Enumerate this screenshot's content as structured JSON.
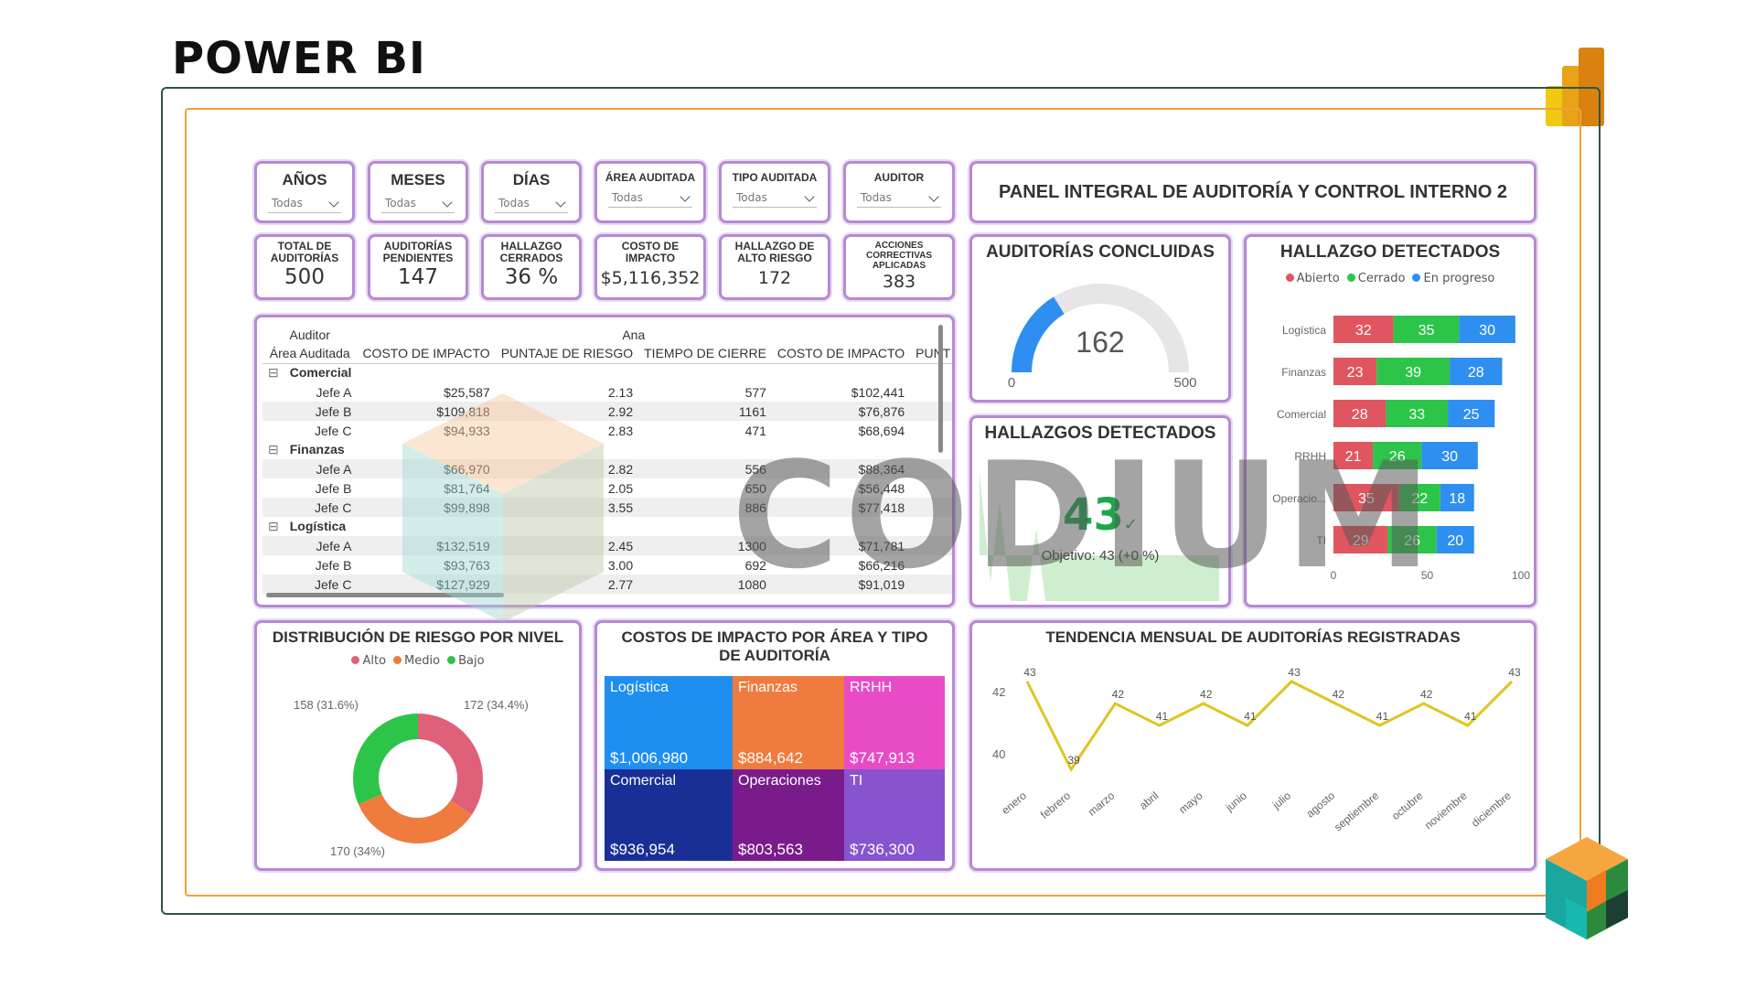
{
  "page": {
    "title": "POWER BI"
  },
  "slicers": [
    {
      "title": "AÑOS",
      "value": "Todas"
    },
    {
      "title": "MESES",
      "value": "Todas"
    },
    {
      "title": "DÍAS",
      "value": "Todas"
    },
    {
      "title": "ÁREA AUDITADA",
      "value": "Todas"
    },
    {
      "title": "TIPO AUDITADA",
      "value": "Todas"
    },
    {
      "title": "AUDITOR",
      "value": "Todas"
    }
  ],
  "dashboard_title": "PANEL INTEGRAL DE AUDITORÍA Y CONTROL INTERNO 2",
  "kpis": [
    {
      "label": "TOTAL DE AUDITORÍAS",
      "value": "500"
    },
    {
      "label": "AUDITORÍAS PENDIENTES",
      "value": "147"
    },
    {
      "label": "HALLAZGO CERRADOS",
      "value": "36 %"
    },
    {
      "label": "COSTO DE IMPACTO",
      "value": "$5,116,352"
    },
    {
      "label": "HALLAZGO DE ALTO RIESGO",
      "value": "172"
    },
    {
      "label": "ACCIONES CORRECTIVAS APLICADAS",
      "value": "383"
    }
  ],
  "matrix": {
    "row_header_1": "Auditor",
    "row_header_2": "Área Auditada",
    "col_group": "Ana",
    "columns": [
      "COSTO DE IMPACTO",
      "PUNTAJE DE RIESGO",
      "TIEMPO DE CIERRE",
      "COSTO DE IMPACTO",
      "PUNT"
    ],
    "groups": [
      {
        "name": "Comercial",
        "rows": [
          {
            "name": "Jefe A",
            "c1": "$25,587",
            "c2": "2.13",
            "c3": "577",
            "c4": "$102,441"
          },
          {
            "name": "Jefe B",
            "c1": "$109,818",
            "c2": "2.92",
            "c3": "1161",
            "c4": "$76,876"
          },
          {
            "name": "Jefe C",
            "c1": "$94,933",
            "c2": "2.83",
            "c3": "471",
            "c4": "$68,694"
          }
        ]
      },
      {
        "name": "Finanzas",
        "rows": [
          {
            "name": "Jefe A",
            "c1": "$66,970",
            "c2": "2.82",
            "c3": "556",
            "c4": "$88,364"
          },
          {
            "name": "Jefe B",
            "c1": "$81,764",
            "c2": "2.05",
            "c3": "650",
            "c4": "$56,448"
          },
          {
            "name": "Jefe C",
            "c1": "$99,898",
            "c2": "3.55",
            "c3": "886",
            "c4": "$77,418"
          }
        ]
      },
      {
        "name": "Logística",
        "rows": [
          {
            "name": "Jefe A",
            "c1": "$132,519",
            "c2": "2.45",
            "c3": "1300",
            "c4": "$71,781"
          },
          {
            "name": "Jefe B",
            "c1": "$93,763",
            "c2": "3.00",
            "c3": "692",
            "c4": "$66,216"
          },
          {
            "name": "Jefe C",
            "c1": "$127,929",
            "c2": "2.77",
            "c3": "1080",
            "c4": "$91,019"
          }
        ]
      }
    ]
  },
  "gauge": {
    "title": "AUDITORÍAS CONCLUIDAS",
    "value": 162,
    "min": 0,
    "max": 500,
    "value_label": "162",
    "min_label": "0",
    "max_label": "500",
    "fill_color": "#2f8ff0",
    "track_color": "#e6e6e6"
  },
  "kpi_card": {
    "title": "HALLAZGOS DETECTADOS",
    "value": "43",
    "goal": "Objetivo: 43 (+0 %)",
    "color": "#1aa84a"
  },
  "stacked_bar": {
    "title": "HALLAZGO DETECTADOS",
    "legend": [
      {
        "name": "Abierto",
        "color": "#e05560"
      },
      {
        "name": "Cerrado",
        "color": "#2cc54a"
      },
      {
        "name": "En progreso",
        "color": "#2f8ff0"
      }
    ],
    "x_ticks": [
      "0",
      "50",
      "100"
    ],
    "xlim": [
      0,
      100
    ]
  },
  "donut": {
    "title": "DISTRIBUCIÓN DE RIESGO POR NIVEL",
    "legend": [
      {
        "name": "Alto",
        "color": "#e0607a"
      },
      {
        "name": "Medio",
        "color": "#ef7b3e"
      },
      {
        "name": "Bajo",
        "color": "#2cc54a"
      }
    ],
    "labels": {
      "alto": "172 (34.4%)",
      "medio": "170 (34%)",
      "bajo": "158 (31.6%)"
    }
  },
  "treemap": {
    "title": "COSTOS DE IMPACTO POR ÁREA Y TIPO DE AUDITORÍA",
    "cells": [
      {
        "name": "Logística",
        "value": "$1,006,980",
        "color": "#1e8ef0"
      },
      {
        "name": "Finanzas",
        "value": "$884,642",
        "color": "#ef7b3e"
      },
      {
        "name": "RRHH",
        "value": "$747,913",
        "color": "#e94bc6"
      },
      {
        "name": "Comercial",
        "value": "$936,954",
        "color": "#1a2f96"
      },
      {
        "name": "Operaciones",
        "value": "$803,563",
        "color": "#7a1b8c"
      },
      {
        "name": "TI",
        "value": "$736,300",
        "color": "#8753cf"
      }
    ]
  },
  "line_chart": {
    "title": "TENDENCIA MENSUAL DE AUDITORÍAS REGISTRADAS",
    "y_ticks": [
      "42",
      "40"
    ],
    "line_color": "#e0c420"
  },
  "watermark": {
    "text": "CODIUM"
  },
  "chart_data": [
    {
      "type": "bar",
      "title": "HALLAZGO DETECTADOS",
      "categories": [
        "Logística",
        "Finanzas",
        "Comercial",
        "RRHH",
        "Operacio...",
        "TI"
      ],
      "series": [
        {
          "name": "Abierto",
          "values": [
            32,
            23,
            28,
            21,
            35,
            29
          ]
        },
        {
          "name": "Cerrado",
          "values": [
            35,
            39,
            33,
            26,
            22,
            26
          ]
        },
        {
          "name": "En progreso",
          "values": [
            30,
            28,
            25,
            30,
            18,
            20
          ]
        }
      ],
      "xlim": [
        0,
        100
      ],
      "orientation": "horizontal",
      "stacked": true
    },
    {
      "type": "pie",
      "title": "DISTRIBUCIÓN DE RIESGO POR NIVEL",
      "categories": [
        "Alto",
        "Medio",
        "Bajo"
      ],
      "values": [
        172,
        170,
        158
      ]
    },
    {
      "type": "line",
      "title": "TENDENCIA MENSUAL DE AUDITORÍAS REGISTRADAS",
      "x": [
        "enero",
        "febrero",
        "marzo",
        "abril",
        "mayo",
        "junio",
        "julio",
        "agosto",
        "septiembre",
        "octubre",
        "noviembre",
        "diciembre"
      ],
      "values": [
        43,
        39,
        42,
        41,
        42,
        41,
        43,
        42,
        41,
        42,
        41,
        43
      ],
      "ylim": [
        39,
        43.5
      ]
    }
  ]
}
